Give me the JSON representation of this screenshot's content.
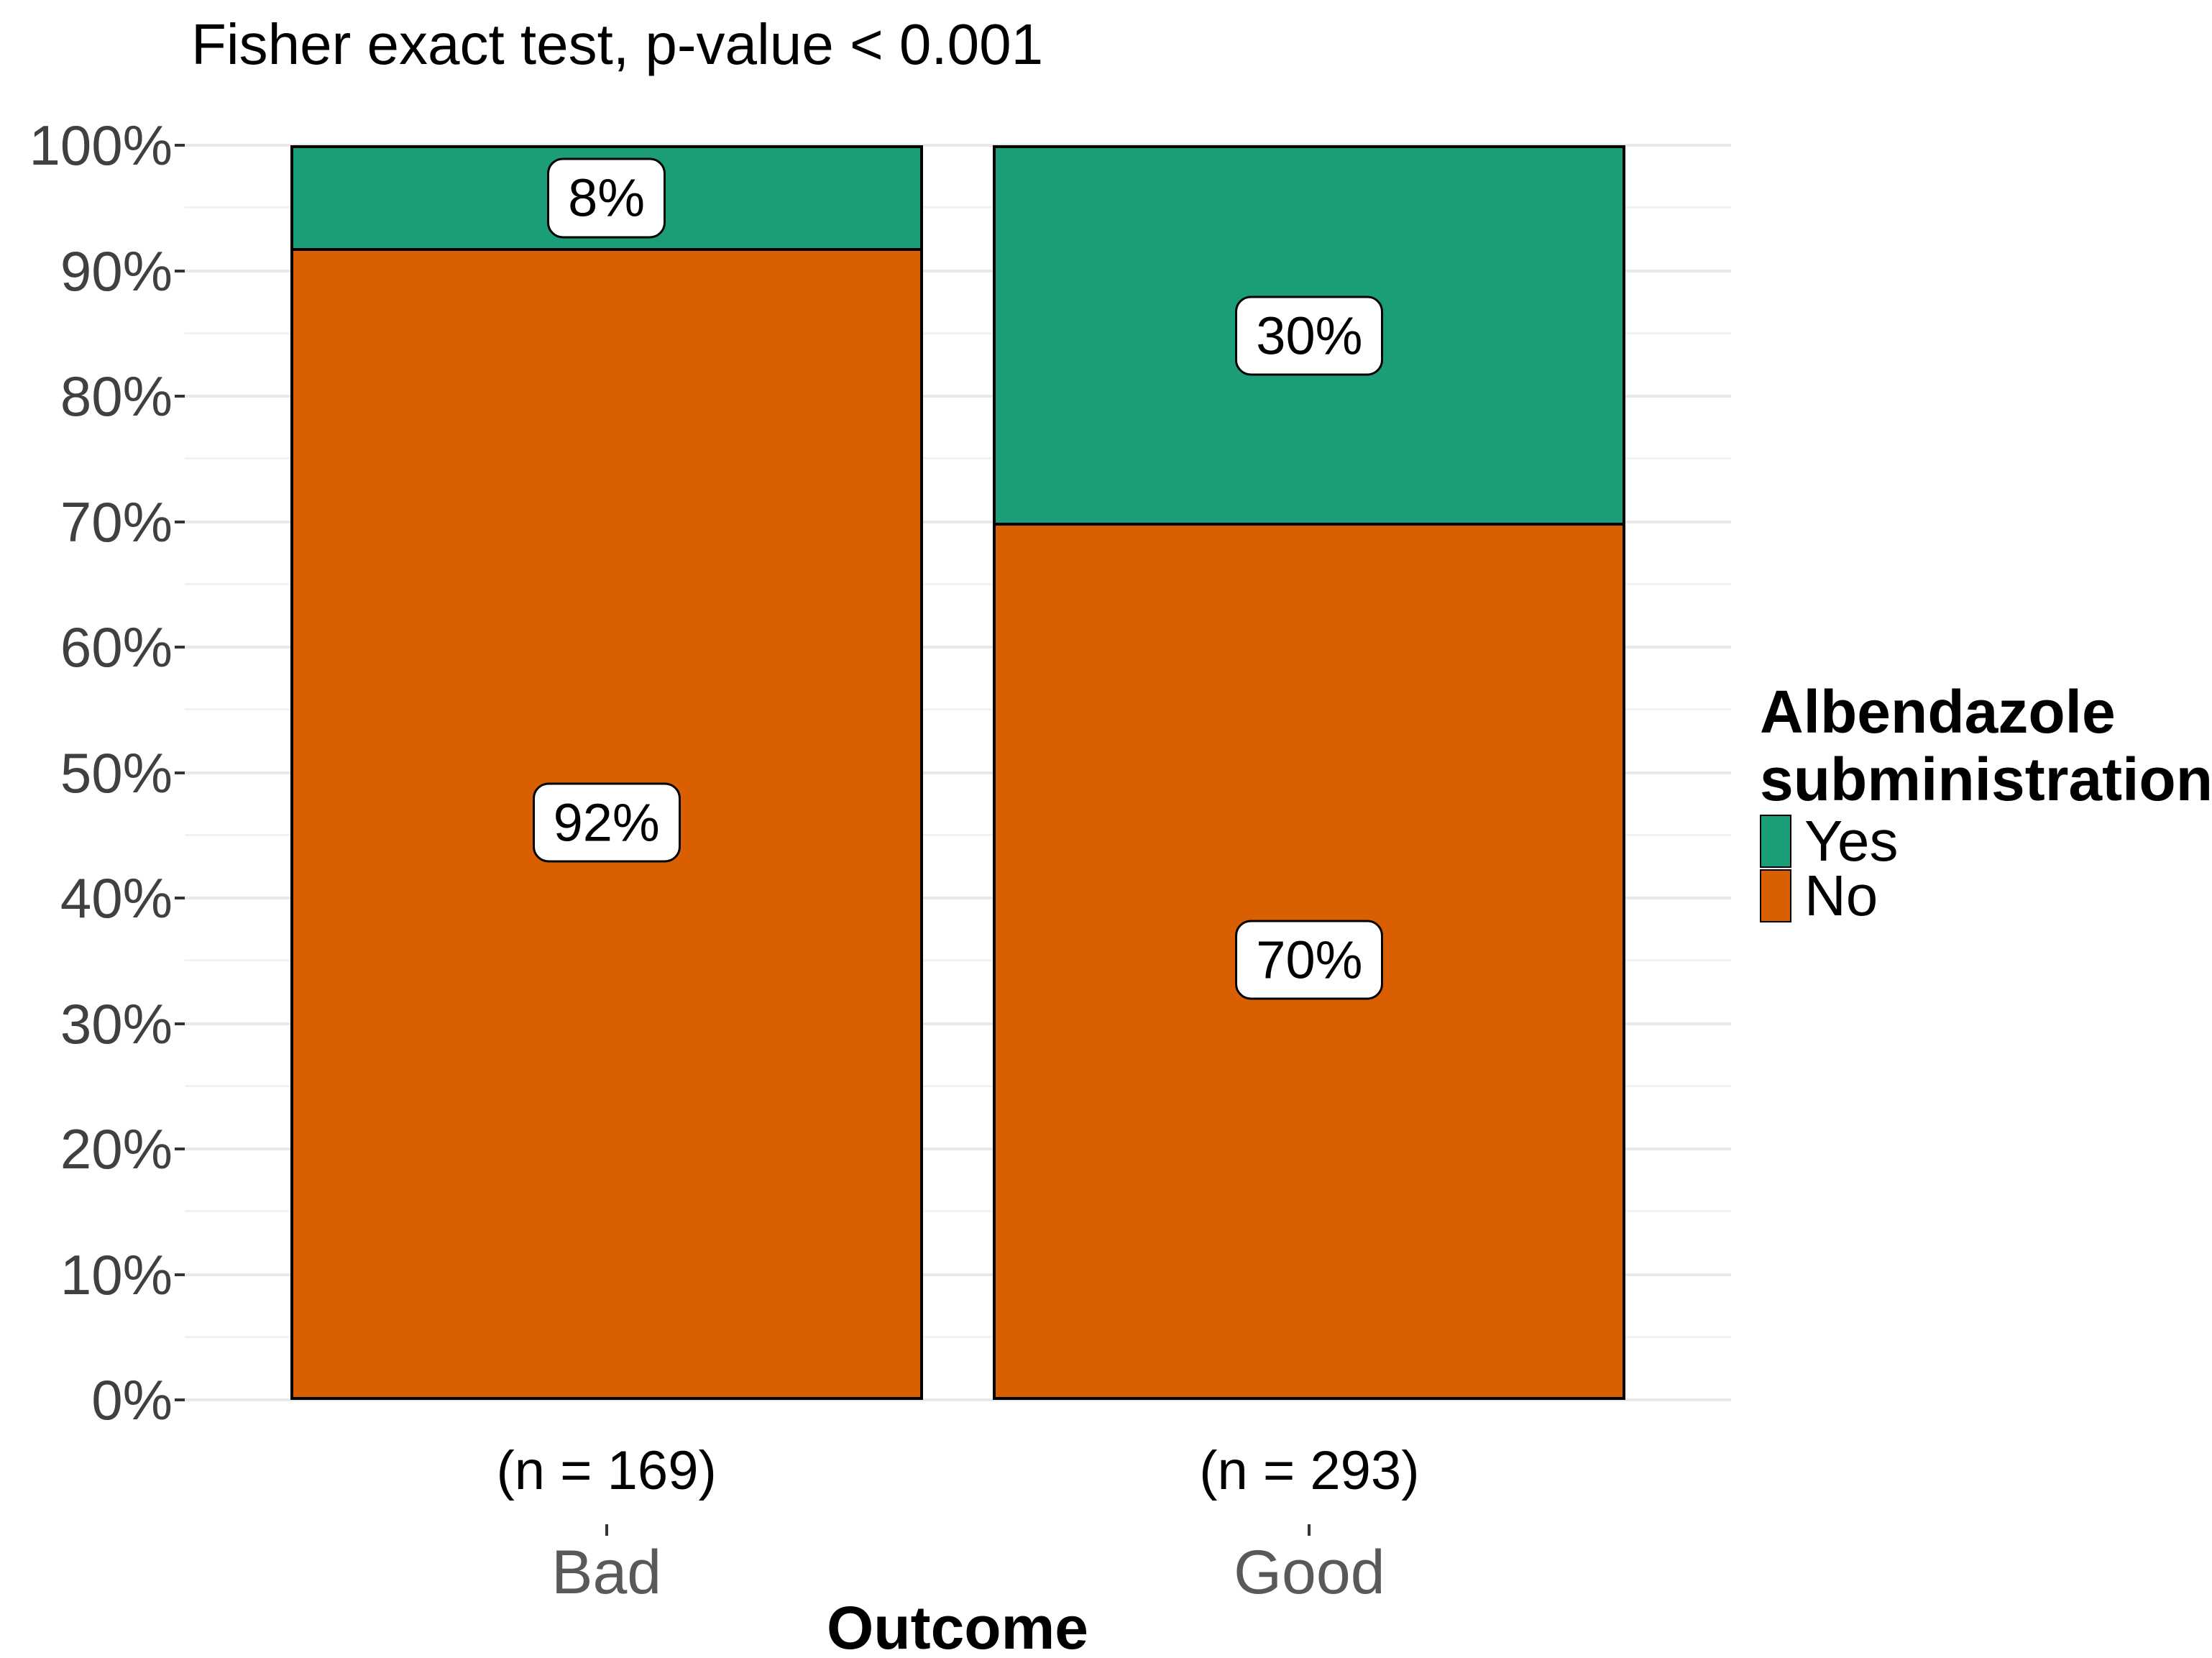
{
  "chart_data": {
    "type": "bar",
    "subtype": "stacked-percent",
    "title": "Fisher exact test, p-value < 0.001",
    "xlabel": "Outcome",
    "ylabel": "",
    "ylim": [
      0,
      100
    ],
    "grid": "horizontal major and minor, no vertical",
    "legend_position": "right",
    "categories": [
      {
        "label": "Bad",
        "count_label": "(n = 169)"
      },
      {
        "label": "Good",
        "count_label": "(n = 293)"
      }
    ],
    "series": [
      {
        "name": "Yes",
        "color": "#1B9E77",
        "values": [
          8,
          30
        ],
        "value_labels": [
          "8%",
          "30%"
        ]
      },
      {
        "name": "No",
        "color": "#D95F02",
        "values": [
          92,
          70
        ],
        "value_labels": [
          "92%",
          "70%"
        ]
      }
    ],
    "y_ticks": [
      {
        "value": 100,
        "label": "100%"
      },
      {
        "value": 90,
        "label": "90%"
      },
      {
        "value": 80,
        "label": "80%"
      },
      {
        "value": 70,
        "label": "70%"
      },
      {
        "value": 60,
        "label": "60%"
      },
      {
        "value": 50,
        "label": "50%"
      },
      {
        "value": 40,
        "label": "40%"
      },
      {
        "value": 30,
        "label": "30%"
      },
      {
        "value": 20,
        "label": "20%"
      },
      {
        "value": 10,
        "label": "10%"
      },
      {
        "value": 0,
        "label": "0%"
      }
    ],
    "y_minor_ticks": [
      95,
      85,
      75,
      65,
      55,
      45,
      35,
      25,
      15,
      5
    ],
    "legend": {
      "title": "Albendazole\nsubministration",
      "items": [
        {
          "label": "Yes",
          "color": "#1B9E77"
        },
        {
          "label": "No",
          "color": "#D95F02"
        }
      ]
    },
    "colors": {
      "bar_border": "#000000",
      "grid_major": "#E9E9E9",
      "grid_minor": "#F2F2F2",
      "axis_tick": "#333333",
      "y_tick_label": "#404040",
      "x_category_label": "#595959",
      "text": "#000000"
    }
  }
}
